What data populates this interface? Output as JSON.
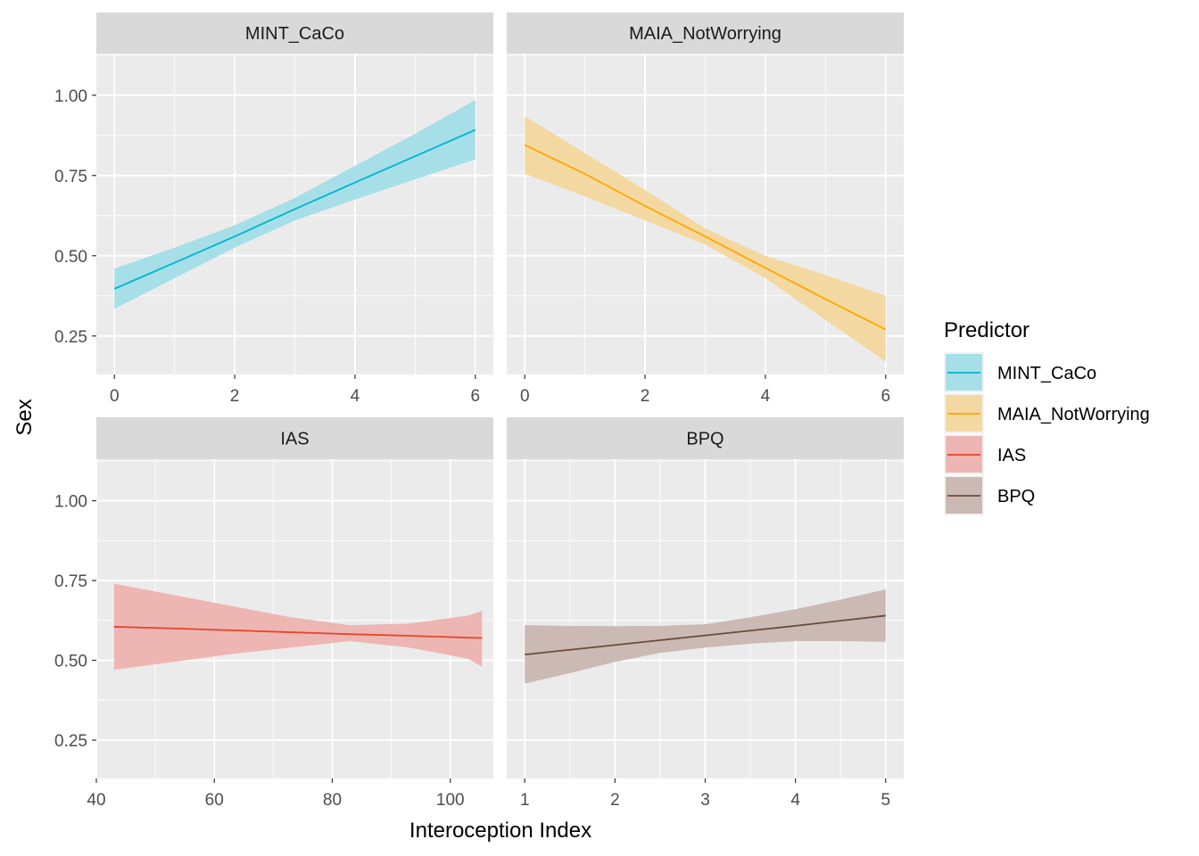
{
  "chart_data": {
    "type": "line",
    "xlabel": "Interoception Index",
    "ylabel": "Sex",
    "ylim": [
      0.13,
      1.13
    ],
    "y_ticks": [
      0.25,
      0.5,
      0.75,
      1.0
    ],
    "y_tick_labels": [
      "0.25",
      "0.50",
      "0.75",
      "1.00"
    ],
    "grid": true,
    "legend": {
      "title": "Predictor",
      "placement": "right",
      "entries": [
        {
          "label": "MINT_CaCo",
          "color": "#00B4CC",
          "fill": "#A6DFE8"
        },
        {
          "label": "MAIA_NotWorrying",
          "color": "#FFA500",
          "fill": "#F3D9A1"
        },
        {
          "label": "IAS",
          "color": "#E8432E",
          "fill": "#EDB6B2"
        },
        {
          "label": "BPQ",
          "color": "#6B4C3A",
          "fill": "#CBB9B3"
        }
      ]
    },
    "panels": [
      {
        "name": "MINT_CaCo",
        "color": "#00B4CC",
        "fill": "#A6DFE8",
        "xlim": [
          -0.3,
          6.3
        ],
        "x_ticks": [
          0,
          2,
          4,
          6
        ],
        "x_tick_labels": [
          "0",
          "2",
          "4",
          "6"
        ],
        "x_minor": [
          1,
          3,
          5
        ],
        "x": [
          0,
          1,
          2,
          3,
          4,
          5,
          6
        ],
        "y": [
          0.397,
          0.478,
          0.56,
          0.645,
          0.728,
          0.81,
          0.892
        ],
        "lower": [
          0.335,
          0.43,
          0.525,
          0.61,
          0.675,
          0.738,
          0.8
        ],
        "upper": [
          0.46,
          0.525,
          0.595,
          0.68,
          0.78,
          0.88,
          0.985
        ]
      },
      {
        "name": "MAIA_NotWorrying",
        "color": "#FFA500",
        "fill": "#F3D9A1",
        "xlim": [
          -0.3,
          6.3
        ],
        "x_ticks": [
          0,
          2,
          4,
          6
        ],
        "x_tick_labels": [
          "0",
          "2",
          "4",
          "6"
        ],
        "x_minor": [
          1,
          3,
          5
        ],
        "x": [
          0,
          1,
          2,
          3,
          4,
          5,
          6
        ],
        "y": [
          0.845,
          0.755,
          0.655,
          0.56,
          0.462,
          0.365,
          0.27
        ],
        "lower": [
          0.755,
          0.685,
          0.61,
          0.535,
          0.43,
          0.3,
          0.17
        ],
        "upper": [
          0.935,
          0.82,
          0.705,
          0.585,
          0.5,
          0.44,
          0.375
        ]
      },
      {
        "name": "IAS",
        "color": "#E8432E",
        "fill": "#EDB6B2",
        "xlim": [
          40,
          107.3
        ],
        "x_ticks": [
          40,
          60,
          80,
          100
        ],
        "x_tick_labels": [
          "40",
          "60",
          "80",
          "100"
        ],
        "x_minor": [
          50,
          70,
          90
        ],
        "x": [
          43,
          53,
          63,
          73,
          83,
          93,
          103,
          105.4
        ],
        "y": [
          0.605,
          0.6,
          0.594,
          0.588,
          0.582,
          0.577,
          0.571,
          0.57
        ],
        "lower": [
          0.47,
          0.495,
          0.52,
          0.54,
          0.56,
          0.54,
          0.505,
          0.48
        ],
        "upper": [
          0.74,
          0.705,
          0.67,
          0.635,
          0.61,
          0.615,
          0.64,
          0.655
        ]
      },
      {
        "name": "BPQ",
        "color": "#6B4C3A",
        "fill": "#CBB9B3",
        "xlim": [
          0.8,
          5.2
        ],
        "x_ticks": [
          1,
          2,
          3,
          4,
          5
        ],
        "x_tick_labels": [
          "1",
          "2",
          "3",
          "4",
          "5"
        ],
        "x_minor": [
          1.5,
          2.5,
          3.5,
          4.5
        ],
        "x": [
          1,
          1.5,
          2,
          2.5,
          3,
          3.5,
          4,
          4.5,
          5
        ],
        "y": [
          0.518,
          0.533,
          0.548,
          0.563,
          0.578,
          0.593,
          0.608,
          0.624,
          0.64
        ],
        "lower": [
          0.427,
          0.46,
          0.495,
          0.523,
          0.54,
          0.552,
          0.56,
          0.56,
          0.558
        ],
        "upper": [
          0.61,
          0.608,
          0.607,
          0.608,
          0.613,
          0.635,
          0.66,
          0.69,
          0.722
        ]
      }
    ]
  }
}
